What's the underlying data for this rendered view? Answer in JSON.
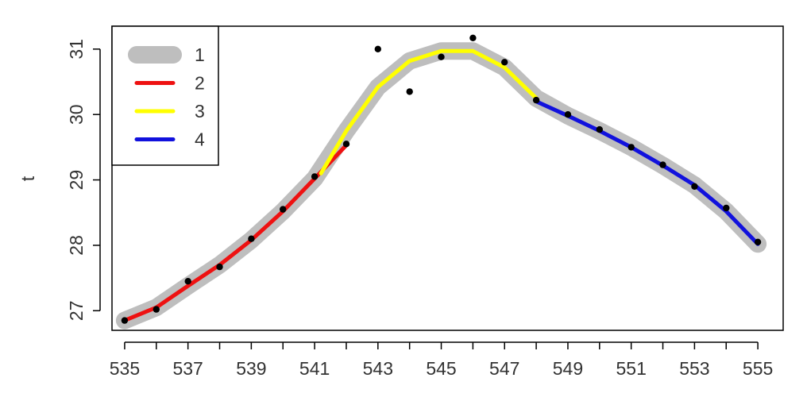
{
  "chart_data": {
    "type": "line",
    "title": "",
    "xlabel": "",
    "ylabel": "t",
    "xlim": [
      534.6,
      555.8
    ],
    "ylim": [
      26.7,
      31.35
    ],
    "xticks": [
      535,
      536,
      537,
      538,
      539,
      540,
      541,
      542,
      543,
      544,
      545,
      546,
      547,
      548,
      549,
      550,
      551,
      552,
      553,
      554,
      555
    ],
    "xtick_labels": [
      "535",
      "537",
      "539",
      "541",
      "543",
      "545",
      "547",
      "549",
      "551",
      "553",
      "555"
    ],
    "yticks": [
      27,
      28,
      29,
      30,
      31
    ],
    "ytick_labels": [
      "27",
      "28",
      "29",
      "30",
      "31"
    ],
    "grid": false,
    "legend_position": "top-left",
    "points": {
      "x": [
        535,
        536,
        537,
        538,
        539,
        540,
        541,
        542,
        543,
        544,
        545,
        546,
        547,
        548,
        549,
        550,
        551,
        552,
        553,
        554,
        555
      ],
      "y": [
        26.85,
        27.02,
        27.45,
        27.67,
        28.1,
        28.55,
        29.05,
        29.55,
        31.0,
        30.35,
        30.88,
        31.17,
        30.8,
        30.22,
        30.0,
        29.77,
        29.5,
        29.23,
        28.9,
        28.57,
        28.05
      ]
    },
    "series": [
      {
        "name": "1",
        "color": "#bebebe",
        "x": [
          535,
          536,
          537,
          538,
          539,
          540,
          541,
          542,
          543,
          544,
          545,
          546,
          547,
          548,
          549,
          550,
          551,
          552,
          553,
          554,
          555
        ],
        "y": [
          26.85,
          27.05,
          27.38,
          27.7,
          28.08,
          28.52,
          29.02,
          29.75,
          30.42,
          30.82,
          30.97,
          30.97,
          30.72,
          30.25,
          29.98,
          29.75,
          29.5,
          29.22,
          28.92,
          28.52,
          28.02
        ]
      },
      {
        "name": "2",
        "color": "#ee1111",
        "x": [
          535,
          536,
          537,
          538,
          539,
          540,
          541,
          542
        ],
        "y": [
          26.85,
          27.05,
          27.38,
          27.7,
          28.08,
          28.52,
          29.02,
          29.53
        ]
      },
      {
        "name": "3",
        "color": "#ffff00",
        "x": [
          541.2,
          542,
          543,
          544,
          545,
          546,
          547,
          548
        ],
        "y": [
          29.1,
          29.75,
          30.42,
          30.82,
          30.97,
          30.97,
          30.72,
          30.25
        ]
      },
      {
        "name": "4",
        "color": "#1111dd",
        "x": [
          548,
          549,
          550,
          551,
          552,
          553,
          554,
          555
        ],
        "y": [
          30.2,
          29.98,
          29.75,
          29.5,
          29.22,
          28.92,
          28.52,
          28.02
        ]
      }
    ]
  }
}
